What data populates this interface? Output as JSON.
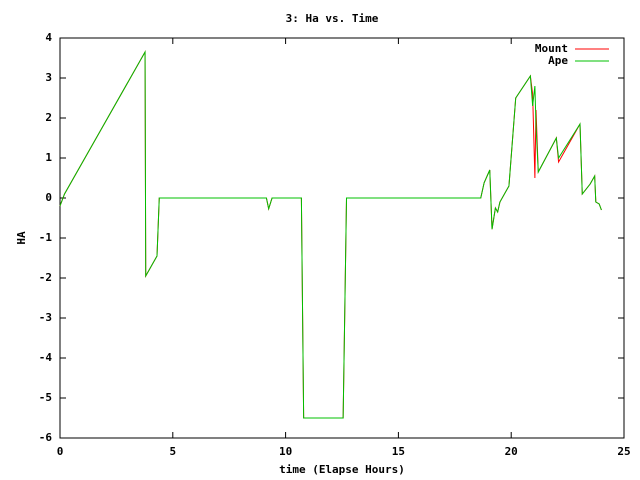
{
  "chart_data": {
    "type": "line",
    "title": "3: Ha vs. Time",
    "xlabel": "time (Elapse Hours)",
    "ylabel": "HA",
    "x": [
      0,
      0.2,
      3.77,
      3.8,
      4.3,
      4.4,
      9.15,
      9.25,
      9.4,
      10.7,
      10.8,
      12.55,
      12.7,
      18.65,
      18.8,
      19.05,
      19.15,
      19.3,
      19.4,
      19.5,
      19.9,
      20.2,
      20.85,
      20.95,
      21.05,
      21.1,
      21.2,
      22.0,
      22.1,
      23.05,
      23.15,
      23.5,
      23.7,
      23.75,
      23.9,
      24.0
    ],
    "series": [
      {
        "name": "Mount",
        "color": "#ff0000",
        "values": [
          -0.2,
          0.1,
          3.65,
          -1.95,
          -1.45,
          0,
          0,
          -0.27,
          0,
          0,
          -5.5,
          -5.5,
          0,
          0,
          0.38,
          0.7,
          -0.78,
          -0.25,
          -0.35,
          -0.1,
          0.3,
          2.5,
          3.05,
          2.6,
          0.5,
          2.2,
          0.65,
          1.5,
          0.9,
          1.85,
          0.1,
          0.35,
          0.55,
          -0.1,
          -0.15,
          -0.3
        ]
      },
      {
        "name": "Ape",
        "color": "#00c000",
        "values": [
          -0.2,
          0.1,
          3.65,
          -1.95,
          -1.45,
          0,
          0,
          -0.27,
          0,
          0,
          -5.5,
          -5.5,
          0,
          0,
          0.38,
          0.7,
          -0.78,
          -0.25,
          -0.35,
          -0.1,
          0.3,
          2.5,
          3.05,
          2.3,
          2.8,
          1.8,
          0.65,
          1.5,
          1.0,
          1.85,
          0.1,
          0.35,
          0.55,
          -0.1,
          -0.15,
          -0.3
        ]
      }
    ],
    "xlim": [
      0,
      25
    ],
    "xticks": [
      0,
      5,
      10,
      15,
      20,
      25
    ],
    "ylim": [
      -6,
      4
    ],
    "yticks": [
      -6,
      -5,
      -4,
      -3,
      -2,
      -1,
      0,
      1,
      2,
      3,
      4
    ],
    "legend": "top-right"
  }
}
